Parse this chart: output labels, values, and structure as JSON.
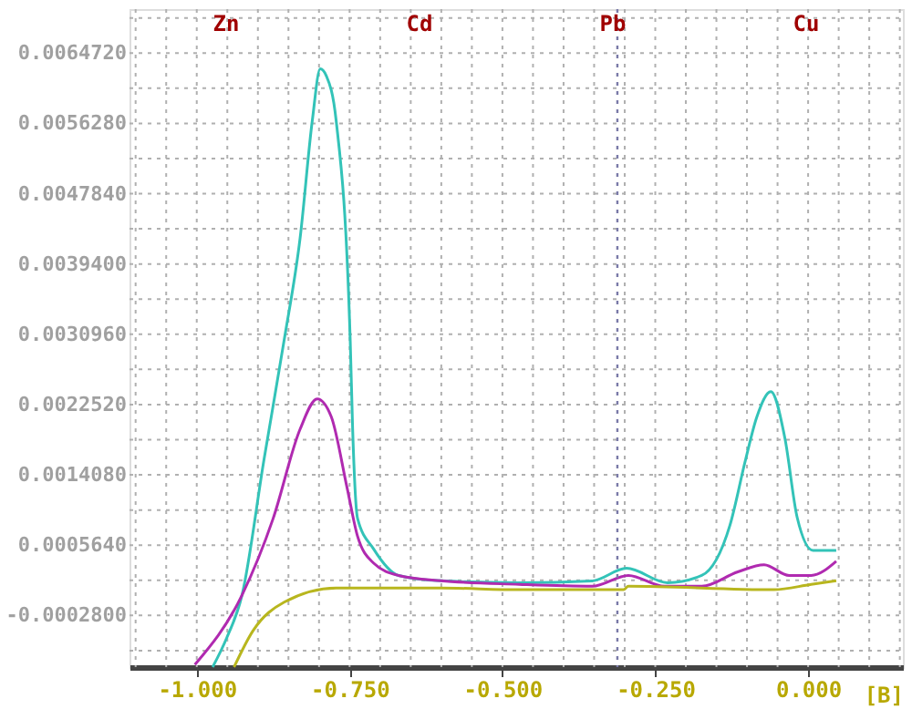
{
  "chart_data": {
    "type": "line",
    "xlabel": "[B]",
    "xlim": [
      -1.11,
      0.155
    ],
    "ylim": [
      -0.0009,
      0.007
    ],
    "xticks": [
      {
        "value": -1.1,
        "label": null
      },
      {
        "value": -1.05,
        "label": null
      },
      {
        "value": -1.0,
        "label": "-1.000"
      },
      {
        "value": -0.95,
        "label": null
      },
      {
        "value": -0.9,
        "label": null
      },
      {
        "value": -0.85,
        "label": null
      },
      {
        "value": -0.8,
        "label": null
      },
      {
        "value": -0.75,
        "label": "-0.750"
      },
      {
        "value": -0.7,
        "label": null
      },
      {
        "value": -0.65,
        "label": null
      },
      {
        "value": -0.6,
        "label": null
      },
      {
        "value": -0.55,
        "label": null
      },
      {
        "value": -0.5,
        "label": "-0.500"
      },
      {
        "value": -0.45,
        "label": null
      },
      {
        "value": -0.4,
        "label": null
      },
      {
        "value": -0.35,
        "label": null
      },
      {
        "value": -0.3,
        "label": null
      },
      {
        "value": -0.25,
        "label": "-0.250"
      },
      {
        "value": -0.2,
        "label": null
      },
      {
        "value": -0.15,
        "label": null
      },
      {
        "value": -0.1,
        "label": null
      },
      {
        "value": -0.05,
        "label": null
      },
      {
        "value": 0.0,
        "label": "0.000"
      },
      {
        "value": 0.05,
        "label": null
      },
      {
        "value": 0.1,
        "label": null
      },
      {
        "value": 0.15,
        "label": null
      }
    ],
    "yticks": [
      {
        "value": -0.000702,
        "label": null
      },
      {
        "value": -0.00028,
        "label": "-0.0002800"
      },
      {
        "value": 0.000142,
        "label": null
      },
      {
        "value": 0.000564,
        "label": "0.0005640"
      },
      {
        "value": 0.000986,
        "label": null
      },
      {
        "value": 0.001408,
        "label": "0.0014080"
      },
      {
        "value": 0.00183,
        "label": null
      },
      {
        "value": 0.002252,
        "label": "0.0022520"
      },
      {
        "value": 0.002674,
        "label": null
      },
      {
        "value": 0.003096,
        "label": "0.0030960"
      },
      {
        "value": 0.003518,
        "label": null
      },
      {
        "value": 0.00394,
        "label": "0.0039400"
      },
      {
        "value": 0.004362,
        "label": null
      },
      {
        "value": 0.004784,
        "label": "0.0047840"
      },
      {
        "value": 0.005206,
        "label": null
      },
      {
        "value": 0.005628,
        "label": "0.0056280"
      },
      {
        "value": 0.00605,
        "label": null
      },
      {
        "value": 0.006472,
        "label": "0.0064720"
      },
      {
        "value": 0.006894,
        "label": null
      }
    ],
    "grid": true,
    "legend": false,
    "marker": "none",
    "line_style": "solid",
    "series": [
      {
        "color": "#33c3b8",
        "x": [
          -0.974,
          -0.951,
          -0.926,
          -0.89,
          -0.857,
          -0.831,
          -0.811,
          -0.798,
          -0.788,
          -0.772,
          -0.749,
          -0.745,
          -0.737,
          -0.711,
          -0.67,
          -0.601,
          -0.473,
          -0.353,
          -0.297,
          -0.23,
          -0.174,
          -0.128,
          -0.102,
          -0.084,
          -0.061,
          -0.038,
          -0.018,
          0.008,
          0.046
        ],
        "values": [
          -0.0009,
          -0.00055,
          -3.6e-05,
          0.001592,
          0.003027,
          0.004248,
          0.005662,
          0.006283,
          0.006197,
          0.005662,
          0.003027,
          0.001956,
          0.000885,
          0.000521,
          0.0002,
          0.000136,
          0.000113,
          0.000135,
          0.000286,
          0.000113,
          0.0002,
          0.0008,
          0.0016,
          0.0021,
          0.002406,
          0.00185,
          0.0009,
          0.0005,
          0.0005
        ]
      },
      {
        "color": "#b02ab0",
        "x": [
          -1.003,
          -0.926,
          -0.875,
          -0.831,
          -0.803,
          -0.78,
          -0.754,
          -0.737,
          -0.711,
          -0.67,
          -0.601,
          -0.473,
          -0.353,
          -0.294,
          -0.235,
          -0.174,
          -0.115,
          -0.072,
          -0.031,
          0.005,
          0.046
        ],
        "values": [
          -0.000871,
          -3.6e-05,
          0.000885,
          0.001956,
          0.00232,
          0.002106,
          0.001249,
          0.000671,
          0.00035,
          0.0002,
          0.000136,
          9.3e-05,
          7.1e-05,
          0.0002,
          7.1e-05,
          7.1e-05,
          0.000243,
          0.000328,
          0.0002,
          0.0002,
          0.000371
        ]
      },
      {
        "color": "#b8b61e",
        "x": [
          -0.939,
          -0.908,
          -0.857,
          -0.772,
          -0.601,
          -0.473,
          -0.302,
          -0.294,
          -0.056,
          0.005,
          0.046
        ],
        "values": [
          -0.0009,
          -0.000464,
          -0.000121,
          5e-05,
          5e-05,
          2.9e-05,
          2.9e-05,
          7.1e-05,
          2.9e-05,
          9.3e-05,
          0.000136
        ]
      }
    ],
    "ref_lines": [
      {
        "axis": "x",
        "value": -0.312,
        "color": "#7a7aa8",
        "line_style": "dotted"
      }
    ],
    "annotations": [
      "Zn",
      "Cd",
      "Pb",
      "Cu"
    ]
  }
}
